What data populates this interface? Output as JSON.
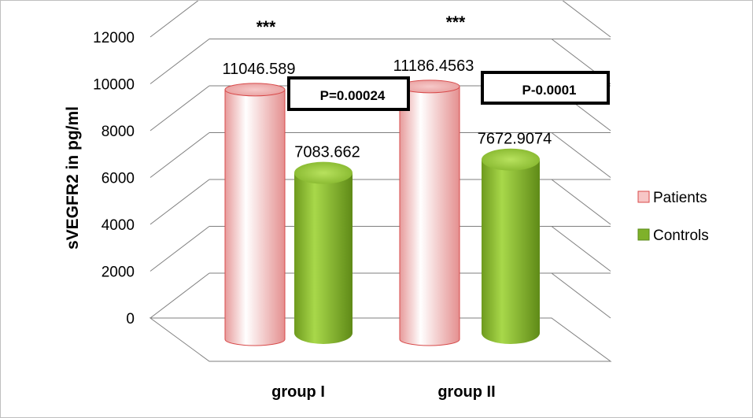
{
  "chart_data": {
    "type": "bar",
    "style": "3d-cylinder",
    "categories": [
      "group I",
      "group II"
    ],
    "series": [
      {
        "name": "Patients",
        "values": [
          11046.589,
          11186.4563
        ],
        "labels": [
          "11046.589",
          "11186.4563"
        ],
        "color": "#f4b6b6"
      },
      {
        "name": "Controls",
        "values": [
          7083.662,
          7672.9074
        ],
        "labels": [
          "7083.662",
          "7672.9074"
        ],
        "color": "#8fbf3a"
      }
    ],
    "ylabel": "sVEGFR2 in pg/ml",
    "ylim": [
      0,
      12000
    ],
    "yticks": [
      "0",
      "2000",
      "4000",
      "6000",
      "8000",
      "10000",
      "12000"
    ],
    "grid": true,
    "legend": "right",
    "annotations": {
      "stars": [
        "***",
        "***"
      ],
      "pvalues": [
        "P=0.00024",
        "P-0.0001"
      ]
    }
  }
}
